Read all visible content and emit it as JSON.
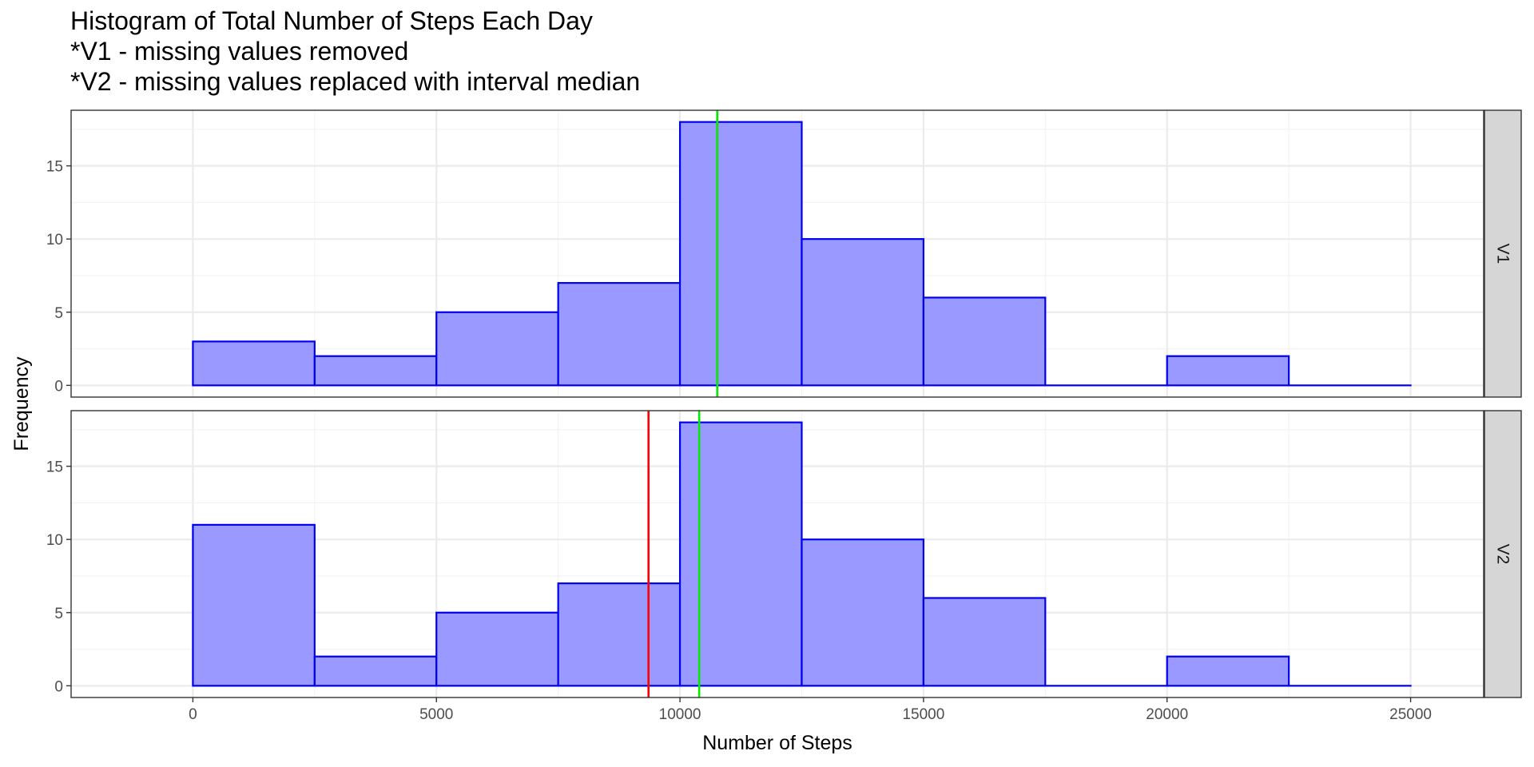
{
  "chart_data": {
    "type": "bar",
    "title_lines": [
      "Histogram of Total Number of Steps Each Day",
      "*V1 - missing values removed",
      "*V2 - missing values replaced with interval median"
    ],
    "xlabel": "Number of Steps",
    "ylabel": "Frequency",
    "xlim": [
      -2500,
      26500
    ],
    "ylim": [
      -0.8,
      18.8
    ],
    "x_ticks": [
      0,
      5000,
      10000,
      15000,
      20000,
      25000
    ],
    "y_ticks": [
      0,
      5,
      10,
      15
    ],
    "bin_edges": [
      0,
      2500,
      5000,
      7500,
      10000,
      12500,
      15000,
      17500,
      20000,
      22500,
      25000
    ],
    "grid": true,
    "colors": {
      "bar_fill": "#9999ff",
      "bar_stroke": "#0000ee",
      "mean_line": "#ff0000",
      "median_line": "#00ee00",
      "strip_fill": "#d6d6d6",
      "grid": "#ebebeb"
    },
    "panels": [
      {
        "name": "V1",
        "values": [
          3,
          2,
          5,
          7,
          18,
          10,
          6,
          0,
          2,
          0
        ],
        "vlines": [
          {
            "x": 10766,
            "color": "#ff0000"
          },
          {
            "x": 10766,
            "color": "#00ee00"
          }
        ]
      },
      {
        "name": "V2",
        "values": [
          11,
          2,
          5,
          7,
          18,
          10,
          6,
          0,
          2,
          0
        ],
        "vlines": [
          {
            "x": 9354,
            "color": "#ff0000"
          },
          {
            "x": 10395,
            "color": "#00ee00"
          }
        ]
      }
    ]
  }
}
